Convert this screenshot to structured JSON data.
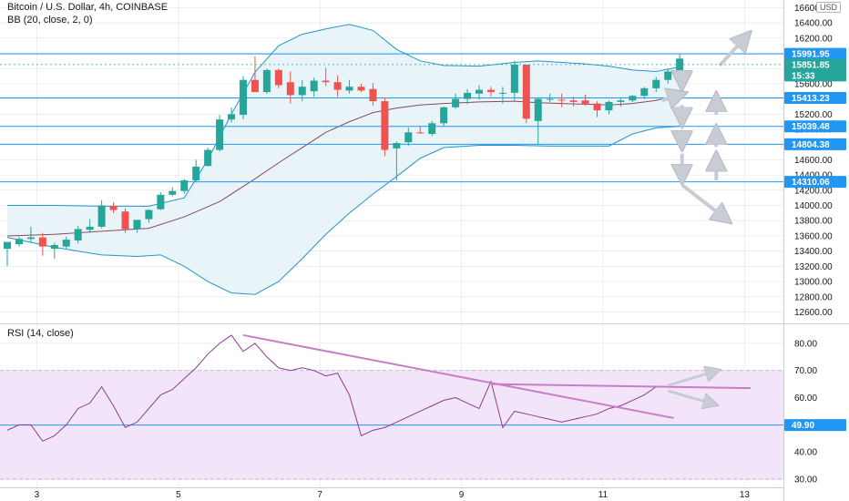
{
  "header": {
    "symbol_line": "Bitcoin / U.S. Dollar, 4h, COINBASE",
    "indicator_line": "BB (20, close, 2, 0)",
    "currency_badge": "USD"
  },
  "rsi_header": "RSI (14, close)",
  "colors": {
    "up": "#26a69a",
    "down": "#ef5350",
    "bb_band": "#2196c9",
    "bb_basis": "#8b4a5c",
    "bb_fill": "#e8f4f7",
    "hline": "#2196f3",
    "rsi_line": "#8e3b8e",
    "rsi_fill": "#f3e5f9",
    "trend": "#c77dc7",
    "arrow": "#c8ccd4",
    "grid": "#e0e3eb"
  },
  "chart_data": [
    {
      "type": "candlestick",
      "title": "Bitcoin / U.S. Dollar, 4h, COINBASE",
      "indicator": "BB (20, close, 2, 0)",
      "x_ticks": [
        {
          "label": "3",
          "index": 2.5
        },
        {
          "label": "5",
          "index": 14.5
        },
        {
          "label": "7",
          "index": 26.5
        },
        {
          "label": "9",
          "index": 38.5
        },
        {
          "label": "11",
          "index": 50.5
        },
        {
          "label": "13",
          "index": 62.5
        }
      ],
      "ylim": [
        12450,
        16700
      ],
      "y_ticks": [
        12600,
        12800,
        13000,
        13200,
        13400,
        13600,
        13800,
        14000,
        14200,
        14400,
        14600,
        14800,
        15000,
        15200,
        15400,
        15600,
        15800,
        16000,
        16200,
        16400,
        16600
      ],
      "y_tick_labels": [
        "12600.00",
        "12800.00",
        "13000.00",
        "13200.00",
        "13400.00",
        "13600.00",
        "13800.00",
        "14000.00",
        "14200.00",
        "14400.00",
        "14600.00",
        "14800.00",
        "15000.00",
        "15200.00",
        "15400.00",
        "15600.00",
        "15800.00",
        "16000.00",
        "16200.00",
        "16400.00",
        "16600.00"
      ],
      "horizontal_levels": [
        {
          "value": 15991.95,
          "label": "15991.95"
        },
        {
          "value": 15413.23,
          "label": "15413.23"
        },
        {
          "value": 15039.48,
          "label": "15039.48"
        },
        {
          "value": 14804.38,
          "label": "14804.38"
        },
        {
          "value": 14310.06,
          "label": "14310.06"
        }
      ],
      "price_markers": [
        {
          "value": 15851.85,
          "label": "15851.85"
        },
        {
          "value": 15720,
          "label": "15:33"
        }
      ],
      "candles": [
        {
          "o": 13430,
          "h": 13520,
          "l": 13200,
          "c": 13520
        },
        {
          "o": 13490,
          "h": 13590,
          "l": 13460,
          "c": 13560
        },
        {
          "o": 13560,
          "h": 13720,
          "l": 13510,
          "c": 13580
        },
        {
          "o": 13580,
          "h": 13640,
          "l": 13340,
          "c": 13460
        },
        {
          "o": 13430,
          "h": 13510,
          "l": 13300,
          "c": 13480
        },
        {
          "o": 13460,
          "h": 13590,
          "l": 13430,
          "c": 13550
        },
        {
          "o": 13540,
          "h": 13730,
          "l": 13500,
          "c": 13690
        },
        {
          "o": 13680,
          "h": 13820,
          "l": 13640,
          "c": 13720
        },
        {
          "o": 13720,
          "h": 14070,
          "l": 13700,
          "c": 14000
        },
        {
          "o": 13990,
          "h": 14040,
          "l": 13900,
          "c": 13940
        },
        {
          "o": 13920,
          "h": 13960,
          "l": 13640,
          "c": 13690
        },
        {
          "o": 13690,
          "h": 13810,
          "l": 13640,
          "c": 13810
        },
        {
          "o": 13820,
          "h": 13950,
          "l": 13770,
          "c": 13940
        },
        {
          "o": 13950,
          "h": 14170,
          "l": 13940,
          "c": 14140
        },
        {
          "o": 14140,
          "h": 14240,
          "l": 14120,
          "c": 14190
        },
        {
          "o": 14190,
          "h": 14350,
          "l": 14150,
          "c": 14330
        },
        {
          "o": 14330,
          "h": 14600,
          "l": 14310,
          "c": 14510
        },
        {
          "o": 14520,
          "h": 14760,
          "l": 14510,
          "c": 14730
        },
        {
          "o": 14730,
          "h": 15190,
          "l": 14710,
          "c": 15130
        },
        {
          "o": 15130,
          "h": 15290,
          "l": 15090,
          "c": 15200
        },
        {
          "o": 15190,
          "h": 15700,
          "l": 15130,
          "c": 15650
        },
        {
          "o": 15650,
          "h": 15960,
          "l": 15500,
          "c": 15490
        },
        {
          "o": 15490,
          "h": 15800,
          "l": 15470,
          "c": 15780
        },
        {
          "o": 15780,
          "h": 15800,
          "l": 15540,
          "c": 15580
        },
        {
          "o": 15620,
          "h": 15760,
          "l": 15340,
          "c": 15450
        },
        {
          "o": 15450,
          "h": 15650,
          "l": 15370,
          "c": 15560
        },
        {
          "o": 15500,
          "h": 15680,
          "l": 15430,
          "c": 15640
        },
        {
          "o": 15640,
          "h": 15810,
          "l": 15570,
          "c": 15620
        },
        {
          "o": 15620,
          "h": 15710,
          "l": 15430,
          "c": 15520
        },
        {
          "o": 15510,
          "h": 15650,
          "l": 15470,
          "c": 15560
        },
        {
          "o": 15560,
          "h": 15600,
          "l": 15490,
          "c": 15510
        },
        {
          "o": 15530,
          "h": 15610,
          "l": 15310,
          "c": 15370
        },
        {
          "o": 15370,
          "h": 15420,
          "l": 14650,
          "c": 14730
        },
        {
          "o": 14750,
          "h": 14840,
          "l": 14330,
          "c": 14820
        },
        {
          "o": 14830,
          "h": 15020,
          "l": 14780,
          "c": 14960
        },
        {
          "o": 14960,
          "h": 15040,
          "l": 14940,
          "c": 14950
        },
        {
          "o": 14940,
          "h": 15110,
          "l": 14910,
          "c": 15080
        },
        {
          "o": 15080,
          "h": 15300,
          "l": 15040,
          "c": 15290
        },
        {
          "o": 15290,
          "h": 15470,
          "l": 15270,
          "c": 15400
        },
        {
          "o": 15400,
          "h": 15530,
          "l": 15330,
          "c": 15480
        },
        {
          "o": 15470,
          "h": 15580,
          "l": 15390,
          "c": 15520
        },
        {
          "o": 15520,
          "h": 15560,
          "l": 15430,
          "c": 15490
        },
        {
          "o": 15480,
          "h": 15560,
          "l": 15340,
          "c": 15480
        },
        {
          "o": 15480,
          "h": 15900,
          "l": 15380,
          "c": 15850
        },
        {
          "o": 15850,
          "h": 15850,
          "l": 15080,
          "c": 15140
        },
        {
          "o": 15110,
          "h": 15420,
          "l": 14800,
          "c": 15400
        },
        {
          "o": 15400,
          "h": 15470,
          "l": 15360,
          "c": 15400
        },
        {
          "o": 15390,
          "h": 15470,
          "l": 15290,
          "c": 15380
        },
        {
          "o": 15380,
          "h": 15430,
          "l": 15300,
          "c": 15360
        },
        {
          "o": 15380,
          "h": 15460,
          "l": 15310,
          "c": 15330
        },
        {
          "o": 15340,
          "h": 15370,
          "l": 15160,
          "c": 15250
        },
        {
          "o": 15250,
          "h": 15380,
          "l": 15200,
          "c": 15360
        },
        {
          "o": 15360,
          "h": 15420,
          "l": 15300,
          "c": 15380
        },
        {
          "o": 15380,
          "h": 15450,
          "l": 15360,
          "c": 15440
        },
        {
          "o": 15440,
          "h": 15560,
          "l": 15400,
          "c": 15540
        },
        {
          "o": 15540,
          "h": 15690,
          "l": 15490,
          "c": 15650
        },
        {
          "o": 15650,
          "h": 15790,
          "l": 15600,
          "c": 15760
        },
        {
          "o": 15750,
          "h": 15990,
          "l": 15720,
          "c": 15930
        }
      ],
      "bb_upper": [
        [
          0,
          14000
        ],
        [
          4,
          14000
        ],
        [
          8,
          13990
        ],
        [
          12,
          13990
        ],
        [
          15,
          14100
        ],
        [
          17,
          14600
        ],
        [
          19,
          15200
        ],
        [
          21,
          15750
        ],
        [
          23,
          16100
        ],
        [
          25,
          16250
        ],
        [
          27,
          16320
        ],
        [
          29,
          16380
        ],
        [
          31,
          16300
        ],
        [
          33,
          16050
        ],
        [
          35,
          15900
        ],
        [
          37,
          15840
        ],
        [
          40,
          15830
        ],
        [
          43,
          15880
        ],
        [
          45,
          15900
        ],
        [
          47,
          15880
        ],
        [
          49,
          15860
        ],
        [
          51,
          15830
        ],
        [
          53,
          15780
        ],
        [
          55,
          15760
        ],
        [
          57,
          15820
        ]
      ],
      "bb_basis": [
        [
          0,
          13600
        ],
        [
          4,
          13620
        ],
        [
          8,
          13660
        ],
        [
          12,
          13700
        ],
        [
          15,
          13850
        ],
        [
          18,
          14050
        ],
        [
          21,
          14350
        ],
        [
          23,
          14560
        ],
        [
          25,
          14760
        ],
        [
          27,
          14960
        ],
        [
          29,
          15100
        ],
        [
          31,
          15220
        ],
        [
          33,
          15280
        ],
        [
          35,
          15320
        ],
        [
          37,
          15340
        ],
        [
          40,
          15360
        ],
        [
          43,
          15370
        ],
        [
          45,
          15350
        ],
        [
          47,
          15340
        ],
        [
          49,
          15330
        ],
        [
          51,
          15320
        ],
        [
          53,
          15340
        ],
        [
          55,
          15380
        ],
        [
          57,
          15450
        ]
      ],
      "bb_lower": [
        [
          0,
          13580
        ],
        [
          4,
          13450
        ],
        [
          8,
          13350
        ],
        [
          11,
          13330
        ],
        [
          13,
          13350
        ],
        [
          15,
          13200
        ],
        [
          17,
          13000
        ],
        [
          19,
          12850
        ],
        [
          21,
          12830
        ],
        [
          23,
          13000
        ],
        [
          25,
          13300
        ],
        [
          27,
          13620
        ],
        [
          29,
          13900
        ],
        [
          31,
          14150
        ],
        [
          33,
          14380
        ],
        [
          35,
          14620
        ],
        [
          37,
          14760
        ],
        [
          40,
          14790
        ],
        [
          43,
          14790
        ],
        [
          46,
          14780
        ],
        [
          49,
          14780
        ],
        [
          51,
          14780
        ],
        [
          53,
          14940
        ],
        [
          55,
          15020
        ],
        [
          57,
          15040
        ]
      ],
      "arrows": [
        {
          "from": [
            55.5,
            15380
          ],
          "to": [
            57.3,
            15470
          ]
        },
        {
          "from": [
            57.2,
            15780
          ],
          "to": [
            57.2,
            15560
          ]
        },
        {
          "from": [
            57.2,
            15320
          ],
          "to": [
            57.2,
            15080
          ]
        },
        {
          "from": [
            57.2,
            14990
          ],
          "to": [
            57.2,
            14770
          ]
        },
        {
          "from": [
            57.2,
            14680
          ],
          "to": [
            57.2,
            14330
          ]
        },
        {
          "from": [
            57.2,
            14270
          ],
          "to": [
            61.1,
            13800
          ]
        },
        {
          "from": [
            60.4,
            15840
          ],
          "to": [
            62.8,
            16250
          ]
        },
        {
          "from": [
            60.1,
            15190
          ],
          "to": [
            60.1,
            15440
          ]
        },
        {
          "from": [
            60.1,
            14770
          ],
          "to": [
            60.1,
            15010
          ]
        },
        {
          "from": [
            60.1,
            14330
          ],
          "to": [
            60.1,
            14660
          ]
        }
      ]
    },
    {
      "type": "line",
      "title": "RSI (14, close)",
      "ylim": [
        27,
        87
      ],
      "y_ticks": [
        30,
        40,
        50,
        60,
        70,
        80
      ],
      "y_tick_labels": [
        "30.00",
        "40.00",
        "50.00",
        "60.00",
        "70.00",
        "80.00"
      ],
      "band": [
        30,
        70
      ],
      "level": {
        "value": 49.9,
        "label": "49.90"
      },
      "values": [
        48,
        50,
        50,
        44,
        46,
        50,
        56,
        58,
        64,
        57,
        49,
        51,
        56,
        61,
        63,
        67,
        71,
        76,
        80,
        83,
        77,
        80,
        75,
        71,
        70,
        71,
        70,
        68,
        69,
        61,
        46,
        48,
        49,
        51,
        53,
        55,
        57,
        59,
        60,
        58,
        56,
        66,
        49,
        55,
        54,
        53,
        52,
        51,
        52,
        53,
        54,
        56,
        57,
        59,
        61,
        64
      ],
      "trendlines": [
        {
          "from": [
            20,
            83
          ],
          "to": [
            56.5,
            52.5
          ]
        },
        {
          "from": [
            41,
            65
          ],
          "to": [
            63,
            63.5
          ]
        }
      ],
      "arrows": [
        {
          "from": [
            56,
            64.5
          ],
          "to": [
            60.2,
            70
          ]
        },
        {
          "from": [
            56,
            62.5
          ],
          "to": [
            60,
            57.5
          ]
        }
      ]
    }
  ]
}
